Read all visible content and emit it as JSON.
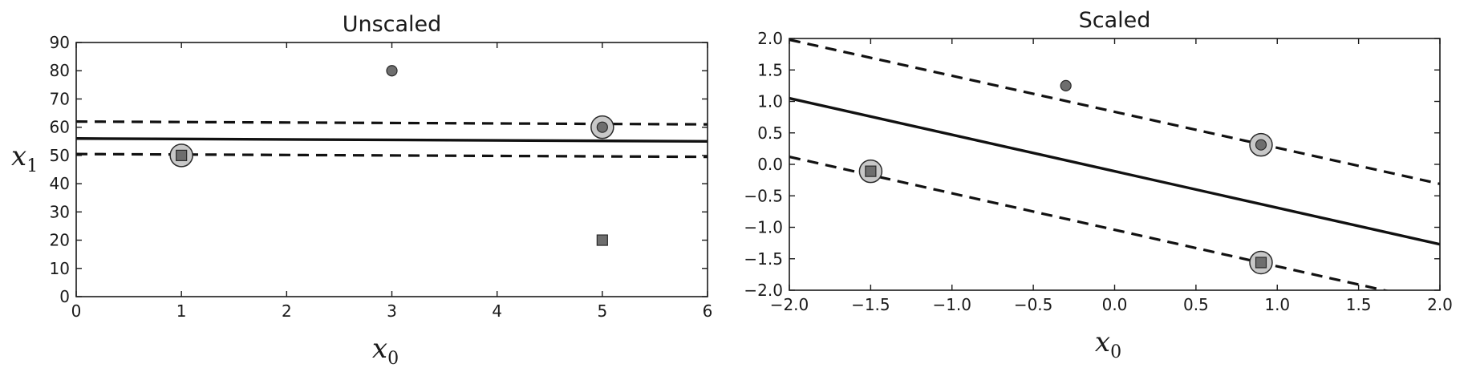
{
  "chart_data": [
    {
      "type": "scatter",
      "title": "Unscaled",
      "xlabel": "x",
      "xlabel_sub": "0",
      "ylabel": "x",
      "ylabel_sub": "1",
      "xlim": [
        0,
        6
      ],
      "ylim": [
        0,
        90
      ],
      "xticks": [
        0,
        1,
        2,
        3,
        4,
        5,
        6
      ],
      "yticks": [
        0,
        10,
        20,
        30,
        40,
        50,
        60,
        70,
        80,
        90
      ],
      "grid": false,
      "points": [
        {
          "x": 1,
          "y": 50,
          "marker": "square",
          "support_vector": true
        },
        {
          "x": 5,
          "y": 20,
          "marker": "square",
          "support_vector": false
        },
        {
          "x": 3,
          "y": 80,
          "marker": "circle",
          "support_vector": false
        },
        {
          "x": 5,
          "y": 60,
          "marker": "circle",
          "support_vector": true
        }
      ],
      "decision_boundary": {
        "style": "solid",
        "from": [
          0,
          56
        ],
        "to": [
          6,
          55
        ]
      },
      "margins": [
        {
          "style": "dashed",
          "from": [
            0,
            62
          ],
          "to": [
            6,
            61
          ]
        },
        {
          "style": "dashed",
          "from": [
            0,
            50.5
          ],
          "to": [
            6,
            49.5
          ]
        }
      ]
    },
    {
      "type": "scatter",
      "title": "Scaled",
      "xlabel": "x",
      "xlabel_sub": "0",
      "ylabel": "",
      "xlim": [
        -2.0,
        2.0
      ],
      "ylim": [
        -2.0,
        2.0
      ],
      "xticks": [
        "−2.0",
        "−1.5",
        "−1.0",
        "−0.5",
        "0.0",
        "0.5",
        "1.0",
        "1.5",
        "2.0"
      ],
      "yticks": [
        "−2.0",
        "−1.5",
        "−1.0",
        "−0.5",
        "0.0",
        "0.5",
        "1.0",
        "1.5",
        "2.0"
      ],
      "grid": false,
      "points": [
        {
          "x": -1.5,
          "y": -0.11,
          "marker": "square",
          "support_vector": true
        },
        {
          "x": 0.9,
          "y": -1.56,
          "marker": "square",
          "support_vector": true
        },
        {
          "x": -0.3,
          "y": 1.25,
          "marker": "circle",
          "support_vector": false
        },
        {
          "x": 0.9,
          "y": 0.31,
          "marker": "circle",
          "support_vector": true
        }
      ],
      "decision_boundary": {
        "style": "solid",
        "from": [
          -2.0,
          1.05
        ],
        "to": [
          2.0,
          -1.27
        ]
      },
      "margins": [
        {
          "style": "dashed",
          "from": [
            -2.0,
            1.98
          ],
          "to": [
            2.0,
            -0.31
          ]
        },
        {
          "style": "dashed",
          "from": [
            -2.0,
            0.12
          ],
          "to": [
            2.0,
            -2.2
          ]
        }
      ]
    }
  ],
  "colors": {
    "line": "#111111",
    "marker_fill": "#6e6e6e",
    "marker_edge": "#2a2a2a",
    "support_vector_fill": "#c8c8c8"
  }
}
